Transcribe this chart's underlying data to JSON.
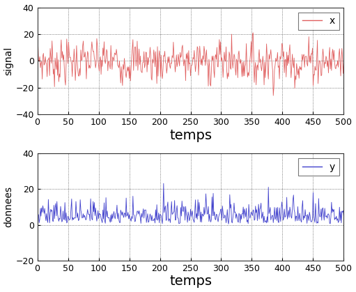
{
  "subplot1": {
    "ylabel": "signal",
    "xlabel": "temps",
    "ylim": [
      -40,
      40
    ],
    "xlim": [
      0,
      500
    ],
    "yticks": [
      -40,
      -20,
      0,
      20,
      40
    ],
    "xticks": [
      0,
      50,
      100,
      150,
      200,
      250,
      300,
      350,
      400,
      450,
      500
    ],
    "line_color": "#e06060",
    "legend_label": "x"
  },
  "subplot2": {
    "ylabel": "donnees",
    "xlabel": "temps",
    "ylim": [
      -20,
      40
    ],
    "xlim": [
      0,
      500
    ],
    "yticks": [
      -20,
      0,
      20,
      40
    ],
    "xticks": [
      0,
      50,
      100,
      150,
      200,
      250,
      300,
      350,
      400,
      450,
      500
    ],
    "line_color": "#4040cc",
    "legend_label": "y"
  },
  "T": 500,
  "figsize": [
    5.11,
    4.19
  ],
  "dpi": 100,
  "bg_color": "#ffffff",
  "axes_bg_color": "#ffffff",
  "grid_color": "#555555",
  "xlabel_fontsize": 14,
  "ylabel_fontsize": 10,
  "tick_fontsize": 9,
  "legend_fontsize": 10,
  "linewidth": 0.6
}
